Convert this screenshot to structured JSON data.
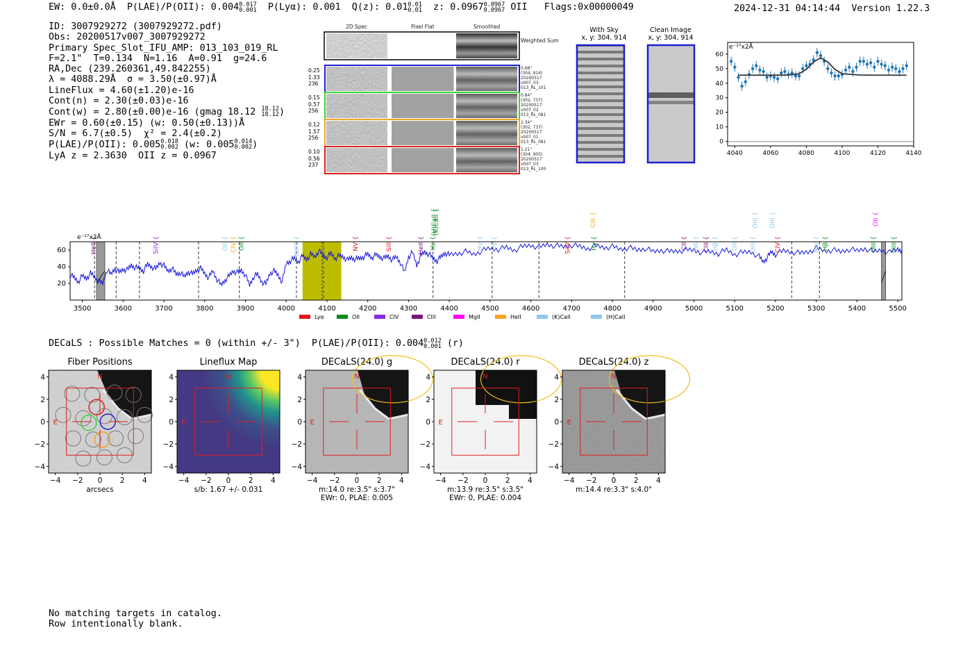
{
  "header": {
    "ew": "EW: 0.0±0.0Å",
    "plae": "P(LAE)/P(OII): 0.004",
    "plae_hi": "0.017",
    "plae_lo": "0.001",
    "plya": "P(Lyα): 0.001",
    "qz": "Q(z): 0.01",
    "qz_hi": "0.01",
    "qz_lo": "0.01",
    "z": "z: 0.0967",
    "z_hi": "0.0967",
    "z_lo": "0.0967",
    "z_line": "OII",
    "flags": "Flags:0x00000049",
    "timestamp": "2024-12-31 04:14:44",
    "version": "Version 1.22.3"
  },
  "info": {
    "id": "ID: 3007929272 (3007929272.pdf)",
    "obs": "Obs: 20200517v007_3007929272",
    "primary": "Primary Spec_Slot_IFU_AMP: 013_103_019_RL",
    "params": "F=2.1\"  T=0.134  N=1.16  A=0.91  g=24.6",
    "radec": "RA,Dec (239.260361,49.842255)",
    "lambda": "λ = 4088.29Å  σ = 3.50(±0.97)Å",
    "lineflux": "LineFlux = 4.60(±1.20)e-16",
    "contn": "Cont(n) = 2.30(±0.03)e-16",
    "contw": "Cont(w) = 2.80(±0.00)e-16 (gmag 18.12",
    "gmag_hi": "18.12",
    "gmag_lo": "18.12",
    "ewr": "EWr = 0.60(±0.15) (w: 0.50(±0.13))Å",
    "sn": "S/N = 6.7(±0.5)  χ² = 2.4(±0.2)",
    "plae": "P(LAE)/P(OII): 0.005",
    "plae_hi": "0.018",
    "plae_lo": "0.002",
    "plae_w": "(w: 0.005",
    "plae_w_hi": "0.014",
    "plae_w_lo": "0.002",
    "lya_z": "LyA z = 2.3630  OII z = 0.0967"
  },
  "cutouts": {
    "col_headers": [
      "2D Spec",
      "Pixel Flat",
      "Smoothed"
    ],
    "weighted_sum": "Weighted Sum",
    "rows": [
      {
        "left": [
          "0.25",
          "1.33",
          "236"
        ],
        "right": [
          "0.68\"",
          "(304, 914)",
          "20200517",
          "v007_03",
          "013_RL_101"
        ],
        "color": "#1f1fd0"
      },
      {
        "left": [
          "0.15",
          "0.57",
          "256"
        ],
        "right": [
          "0.84\"",
          "(302, 737)",
          "20200517",
          "v007_02",
          "013_RL_081"
        ],
        "color": "#3ad23a"
      },
      {
        "left": [
          "0.12",
          "1.57",
          "256"
        ],
        "right": [
          "1.34\"",
          "(302, 737)",
          "20200517",
          "v007_01",
          "013_RL_081"
        ],
        "color": "#f2a527"
      },
      {
        "left": [
          "0.10",
          "0.56",
          "237"
        ],
        "right": [
          "1.21\"",
          "(304, 905)",
          "20200517",
          "v007_03",
          "013_RL_100"
        ],
        "color": "#e01e1e"
      }
    ],
    "with_sky_title": "With Sky",
    "with_sky_coords": "x, y: 304, 914",
    "clean_title": "Clean Image",
    "clean_coords": "x, y: 304, 914"
  },
  "zoom_fit": {
    "unit_label": "e⁻¹⁷x2Å",
    "xticks": [
      "4040",
      "4060",
      "4080",
      "4100",
      "4120",
      "4140"
    ],
    "yticks": [
      "0",
      "10",
      "20",
      "30",
      "40",
      "50",
      "60"
    ]
  },
  "spectrum": {
    "unit_label": "e⁻¹⁷x2Å",
    "xticks": [
      "3500",
      "3600",
      "3700",
      "3800",
      "3900",
      "4000",
      "4100",
      "4200",
      "4300",
      "4400",
      "4500",
      "4600",
      "4700",
      "4800",
      "4900",
      "5000",
      "5100",
      "5200",
      "5300",
      "5400",
      "5500"
    ],
    "yticks": [
      "20",
      "40",
      "60"
    ],
    "legend": [
      {
        "label": "Lyα",
        "color": "#e8141c"
      },
      {
        "label": "OII",
        "color": "#0a8a1e"
      },
      {
        "label": "CIV",
        "color": "#8a2be2"
      },
      {
        "label": "CIII",
        "color": "#7a1478"
      },
      {
        "label": "MgII",
        "color": "#ff00ff"
      },
      {
        "label": "HeII",
        "color": "#f5a623"
      },
      {
        "label": "(K)CaII",
        "color": "#8dc8ec"
      },
      {
        "label": "(H)CaII",
        "color": "#8dc8ec"
      }
    ],
    "lines": [
      {
        "label": "HeII",
        "wave": 3527,
        "color": "#7a1478",
        "row": 0
      },
      {
        "label": "SiIV",
        "wave": 3680,
        "color": "#8a2be2",
        "row": 0
      },
      {
        "label": "OII",
        "wave": 3850,
        "color": "#8dc8ec",
        "row": 0
      },
      {
        "label": "CIV",
        "wave": 3870,
        "color": "#f5a623",
        "row": 0
      },
      {
        "label": "OII",
        "wave": 3890,
        "color": "#0a8a1e",
        "row": 0
      },
      {
        "label": "NeIII",
        "wave": 4025,
        "color": "#8dc8ec",
        "row": 0
      },
      {
        "label": "NV",
        "wave": 4170,
        "color": "#e8141c",
        "row": 0
      },
      {
        "label": "SiII",
        "wave": 4252,
        "color": "#e8141c",
        "row": 0
      },
      {
        "label": "HeII",
        "wave": 4330,
        "color": "#7a1478",
        "row": 0
      },
      {
        "label": "Hε",
        "wave": 4360,
        "color": "#0a8a1e",
        "row": 0
      },
      {
        "label": "(H)CaII",
        "wave": 4362,
        "color": "#0a8a1e",
        "row": 2
      },
      {
        "label": "(K)CaII",
        "wave": 4367,
        "color": "#0a8a1e",
        "row": 2
      },
      {
        "label": "Hγ",
        "wave": 4475,
        "color": "#8dc8ec",
        "row": 0
      },
      {
        "label": "Hγ",
        "wave": 4510,
        "color": "#8dc8ec",
        "row": 0
      },
      {
        "label": "SiIV",
        "wave": 4690,
        "color": "#e8141c",
        "row": 0
      },
      {
        "label": "CIII",
        "wave": 4752,
        "color": "#f5a623",
        "row": 1
      },
      {
        "label": "Hγ",
        "wave": 4755,
        "color": "#0a8a1e",
        "row": 0
      },
      {
        "label": "CII",
        "wave": 4975,
        "color": "#7a1478",
        "row": 0
      },
      {
        "label": "Hδ",
        "wave": 5005,
        "color": "#8dc8ec",
        "row": 0
      },
      {
        "label": "CIII",
        "wave": 5030,
        "color": "#7a1478",
        "row": 0
      },
      {
        "label": "Hβ",
        "wave": 5052,
        "color": "#8dc8ec",
        "row": 0
      },
      {
        "label": "OII",
        "wave": 5100,
        "color": "#8dc8ec",
        "row": 0
      },
      {
        "label": "OIII",
        "wave": 5145,
        "color": "#8dc8ec",
        "row": 0
      },
      {
        "label": "OIII",
        "wave": 5150,
        "color": "#8dc8ec",
        "row": 1
      },
      {
        "label": "OIII",
        "wave": 5192,
        "color": "#8dc8ec",
        "row": 1
      },
      {
        "label": "CIV",
        "wave": 5205,
        "color": "#e8141c",
        "row": 0
      },
      {
        "label": "NaI",
        "wave": 5300,
        "color": "#8dc8ec",
        "row": 0
      },
      {
        "label": "Hβ",
        "wave": 5322,
        "color": "#0a8a1e",
        "row": 0
      },
      {
        "label": "OIII",
        "wave": 5440,
        "color": "#0a8a1e",
        "row": 0
      },
      {
        "label": "OII",
        "wave": 5445,
        "color": "#ff00ff",
        "row": 1
      },
      {
        "label": "OIII",
        "wave": 5490,
        "color": "#0a8a1e",
        "row": 0
      }
    ]
  },
  "decals": {
    "summary": "DECaLS : Possible Matches = 0 (within +/- 3\")  P(LAE)/P(OII): 0.004",
    "summary_hi": "0.012",
    "summary_lo": "0.001",
    "summary_band": "(r)",
    "panels": [
      {
        "title": "Fiber Positions",
        "caption": [
          "arcsecs"
        ]
      },
      {
        "title": "Lineflux Map",
        "caption": [
          "s/b: 1.67 +/- 0.031"
        ]
      },
      {
        "title": "DECaLS(24.0) g",
        "caption": [
          "m:14.0  re:3.5\"  s:3.7\"",
          "EWr: 0, PLAE: 0.005"
        ]
      },
      {
        "title": "DECaLS(24.0) r",
        "caption": [
          "m:13.9  re:3.5\"  s:3.5\"",
          "EWr: 0, PLAE: 0.004"
        ]
      },
      {
        "title": "DECaLS(24.0) z",
        "caption": [
          "m:14.4  re:3.3\"  s:4.0\""
        ]
      }
    ],
    "ticks": [
      "−4",
      "−2",
      "0",
      "2",
      "4"
    ],
    "compass_n": "N",
    "compass_e": "E"
  },
  "footer": {
    "line1": "No matching targets in catalog.",
    "line2": "Row intentionally blank."
  },
  "chart_data": [
    {
      "type": "line",
      "title": "",
      "xlabel": "",
      "ylabel": "e⁻¹⁷x2Å",
      "xlim": [
        3470,
        5510
      ],
      "ylim": [
        0,
        70
      ],
      "highlight_band": [
        4040,
        4135
      ],
      "masked_regions": [
        [
          3535,
          3555
        ],
        [
          5460,
          5470
        ]
      ],
      "series": [
        {
          "x": [
            3470,
            3480,
            3490,
            3500,
            3510,
            3520,
            3530,
            3540,
            3550,
            3560,
            3570,
            3580,
            3590,
            3600,
            3610,
            3620,
            3630,
            3640,
            3650,
            3660,
            3670,
            3680,
            3690,
            3700,
            3710,
            3720,
            3730,
            3740,
            3750,
            3760,
            3770,
            3780,
            3790,
            3800,
            3810,
            3820,
            3830,
            3840,
            3850,
            3860,
            3870,
            3880,
            3890,
            3900,
            3910,
            3920,
            3930,
            3940,
            3950,
            3960,
            3970,
            3980,
            3990,
            4000,
            4010,
            4020,
            4030,
            4040,
            4050,
            4060,
            4070,
            4080,
            4090,
            4100,
            4110,
            4120,
            4130,
            4140,
            4150,
            4160,
            4170,
            4180,
            4190,
            4200,
            4210,
            4220,
            4230,
            4240,
            4250,
            4260,
            4270,
            4280,
            4290,
            4300,
            4310,
            4320,
            4330,
            4340,
            4350,
            4360,
            4370,
            4380,
            4390,
            4400,
            4420,
            4440,
            4460,
            4480,
            4500,
            4520,
            4540,
            4560,
            4580,
            4600,
            4620,
            4640,
            4660,
            4680,
            4700,
            4720,
            4740,
            4760,
            4780,
            4800,
            4820,
            4840,
            4860,
            4880,
            4900,
            4920,
            4940,
            4960,
            4980,
            5000,
            5020,
            5040,
            5060,
            5080,
            5100,
            5120,
            5140,
            5160,
            5170,
            5180,
            5190,
            5200,
            5220,
            5240,
            5260,
            5280,
            5300,
            5320,
            5340,
            5360,
            5380,
            5400,
            5420,
            5440,
            5460,
            5480,
            5500,
            5510
          ],
          "y": [
            30,
            27,
            22,
            29,
            26,
            32,
            28,
            22,
            20,
            36,
            31,
            38,
            33,
            37,
            36,
            42,
            39,
            38,
            35,
            43,
            40,
            37,
            45,
            41,
            35,
            38,
            31,
            33,
            28,
            34,
            31,
            36,
            38,
            32,
            27,
            35,
            25,
            18,
            24,
            29,
            35,
            33,
            36,
            30,
            18,
            28,
            31,
            22,
            19,
            32,
            35,
            30,
            22,
            44,
            47,
            50,
            46,
            53,
            49,
            55,
            52,
            59,
            54,
            51,
            56,
            50,
            53,
            52,
            48,
            51,
            49,
            50,
            52,
            55,
            51,
            54,
            52,
            50,
            53,
            48,
            52,
            45,
            33,
            52,
            57,
            42,
            53,
            58,
            55,
            50,
            47,
            52,
            57,
            54,
            56,
            58,
            55,
            59,
            62,
            61,
            63,
            60,
            64,
            66,
            63,
            67,
            65,
            64,
            66,
            64,
            62,
            65,
            63,
            64,
            61,
            63,
            60,
            62,
            58,
            60,
            58,
            59,
            60,
            60,
            57,
            58,
            56,
            60,
            55,
            57,
            58,
            52,
            46,
            51,
            58,
            55,
            59,
            58,
            56,
            58,
            62,
            59,
            60,
            58,
            61,
            59,
            62,
            58,
            60,
            57,
            61,
            60
          ]
        }
      ]
    },
    {
      "type": "scatter",
      "title": "",
      "xlabel": "",
      "ylabel": "e⁻¹⁷x2Å",
      "xlim": [
        4036,
        4140
      ],
      "ylim": [
        -3,
        68
      ],
      "series": [
        {
          "name": "",
          "x": [
            4038,
            4040,
            4042,
            4044,
            4046,
            4048,
            4050,
            4052,
            4054,
            4056,
            4058,
            4060,
            4062,
            4064,
            4066,
            4068,
            4070,
            4072,
            4074,
            4076,
            4078,
            4080,
            4082,
            4084,
            4086,
            4088,
            4090,
            4092,
            4094,
            4096,
            4098,
            4100,
            4102,
            4104,
            4106,
            4108,
            4110,
            4112,
            4114,
            4116,
            4118,
            4120,
            4122,
            4124,
            4126,
            4128,
            4130,
            4132,
            4134,
            4136
          ],
          "y": [
            55,
            51,
            44,
            38,
            41,
            46,
            50,
            52,
            49,
            48,
            44,
            45,
            44,
            43,
            47,
            48,
            46,
            47,
            45,
            45,
            50,
            52,
            53,
            56,
            61,
            59,
            55,
            50,
            47,
            45,
            45,
            46,
            49,
            51,
            48,
            51,
            55,
            55,
            53,
            54,
            51,
            55,
            53,
            52,
            49,
            51,
            50,
            48,
            50,
            52
          ],
          "yerr": 3.2
        },
        {
          "name": "",
          "model_x": [
            4042,
            4050,
            4060,
            4070,
            4076,
            4080,
            4084,
            4088,
            4092,
            4096,
            4100,
            4110,
            4120,
            4130,
            4136
          ],
          "model_y": [
            45.5,
            45.5,
            45.5,
            45.6,
            46.5,
            49.5,
            54.5,
            57.5,
            54.5,
            49.5,
            46.5,
            45.6,
            45.5,
            45.5,
            45.5
          ]
        }
      ]
    }
  ]
}
